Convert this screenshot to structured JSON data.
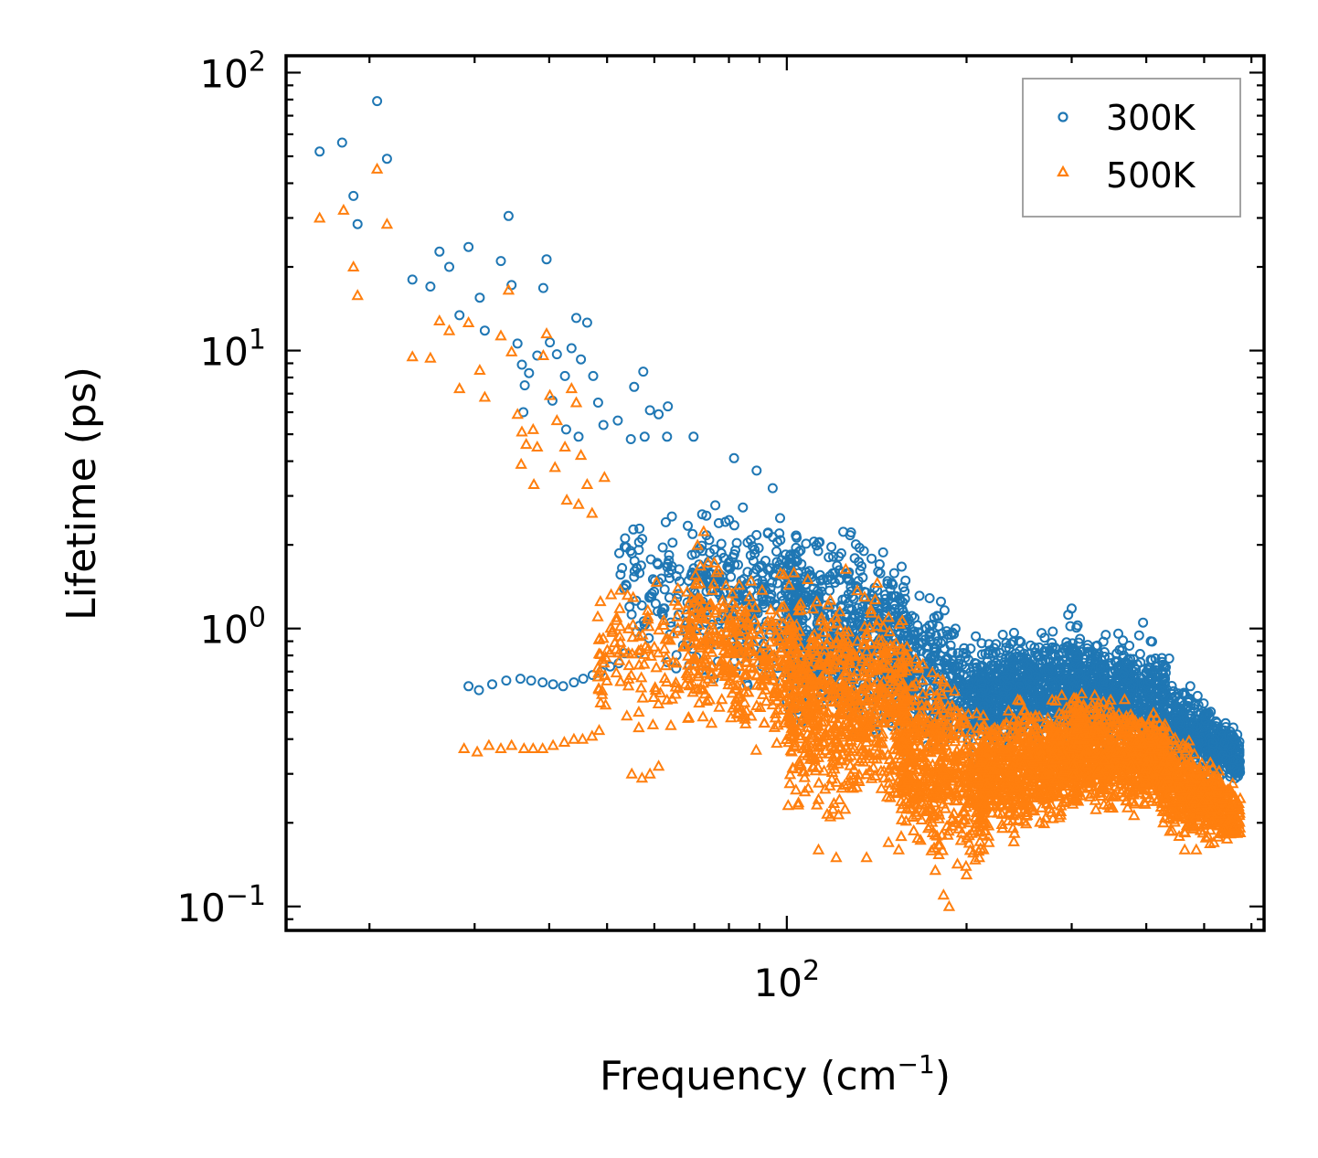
{
  "chart_data": {
    "type": "scatter",
    "title": "",
    "xlabel": "Frequency (cm",
    "xlabel_sup": "−1",
    "xlabel_end": ")",
    "ylabel": "Lifetime (ps)",
    "xscale": "log",
    "yscale": "log",
    "xlim": [
      14.5,
      630
    ],
    "ylim": [
      0.082,
      115
    ],
    "x_ticks": [
      {
        "value": 100,
        "base": "10",
        "exp": "2"
      }
    ],
    "y_ticks": [
      {
        "value": 0.1,
        "base": "10",
        "exp": "−1"
      },
      {
        "value": 1,
        "base": "10",
        "exp": "0"
      },
      {
        "value": 10,
        "base": "10",
        "exp": "1"
      },
      {
        "value": 100,
        "base": "10",
        "exp": "2"
      }
    ],
    "legend_position": "top-right",
    "colors": {
      "300K": "#1f77b4",
      "500K": "#ff7f0e"
    },
    "series": [
      {
        "name": "300K",
        "marker": "circle",
        "points": [
          [
            16.5,
            52
          ],
          [
            18,
            56
          ],
          [
            18.8,
            36
          ],
          [
            19.1,
            28.5
          ],
          [
            20.6,
            79
          ],
          [
            21.4,
            49
          ],
          [
            23.6,
            18
          ],
          [
            25.3,
            17
          ],
          [
            26.2,
            22.7
          ],
          [
            27.2,
            20
          ],
          [
            28.3,
            13.4
          ],
          [
            29.3,
            23.6
          ],
          [
            30.6,
            15.5
          ],
          [
            31.2,
            11.8
          ],
          [
            33.2,
            21
          ],
          [
            34.2,
            30.5
          ],
          [
            34.6,
            17.2
          ],
          [
            35.4,
            10.6
          ],
          [
            36,
            8.9
          ],
          [
            36.4,
            7.5
          ],
          [
            37,
            8.3
          ],
          [
            38.2,
            9.6
          ],
          [
            39.1,
            16.8
          ],
          [
            39.6,
            21.3
          ],
          [
            40.1,
            10.7
          ],
          [
            41.2,
            9.7
          ],
          [
            42.5,
            8.1
          ],
          [
            43.6,
            10.2
          ],
          [
            44.4,
            13.1
          ],
          [
            45.2,
            9.3
          ],
          [
            46.3,
            12.6
          ],
          [
            47.4,
            8.1
          ],
          [
            48.3,
            6.5
          ],
          [
            55.5,
            7.4
          ],
          [
            57.5,
            8.4
          ],
          [
            59,
            6.1
          ],
          [
            61,
            5.9
          ],
          [
            63.2,
            6.3
          ],
          [
            36.2,
            6
          ],
          [
            40.5,
            6.6
          ],
          [
            42.7,
            5.2
          ],
          [
            44.8,
            4.9
          ],
          [
            49.3,
            5.4
          ],
          [
            52.1,
            5.6
          ],
          [
            54.8,
            4.8
          ],
          [
            57.8,
            4.9
          ],
          [
            63,
            4.9
          ],
          [
            69.8,
            4.9
          ],
          [
            81.6,
            4.1
          ],
          [
            89,
            3.7
          ],
          [
            94.7,
            3.2
          ],
          [
            29.3,
            0.62
          ],
          [
            30.5,
            0.6
          ],
          [
            32.1,
            0.63
          ],
          [
            33.9,
            0.65
          ],
          [
            35.8,
            0.66
          ],
          [
            37.3,
            0.65
          ],
          [
            39,
            0.64
          ],
          [
            40.6,
            0.63
          ],
          [
            42.2,
            0.62
          ],
          [
            44,
            0.64
          ],
          [
            45.6,
            0.66
          ],
          [
            47.3,
            0.68
          ],
          [
            48.9,
            0.7
          ],
          [
            50.6,
            0.73
          ],
          [
            52.3,
            0.75
          ],
          [
            104,
            0.94
          ],
          [
            108,
            0.9
          ],
          [
            113,
            0.95
          ],
          [
            118,
            1.2
          ],
          [
            124,
            1.27
          ],
          [
            128.6,
            1.3
          ],
          [
            124.8,
            1.05
          ],
          [
            182,
            0.96
          ],
          [
            166,
            0.97
          ],
          [
            230,
            0.95
          ],
          [
            296,
            1.12
          ],
          [
            300,
            1.18
          ],
          [
            395,
            1.05
          ],
          [
            407,
            0.9
          ],
          [
            437,
            0.78
          ],
          [
            474,
            0.62
          ],
          [
            535,
            0.43
          ],
          [
            541,
            0.39
          ]
        ],
        "bands": [
          {
            "x": [
              52,
              70
            ],
            "y_low": [
              0.7,
              0.5
            ],
            "y_high": [
              2.8,
              3.3
            ],
            "density": 90
          },
          {
            "x": [
              68,
              105
            ],
            "y_low": [
              0.55,
              0.55
            ],
            "y_high": [
              3.6,
              2.9
            ],
            "density": 320
          },
          {
            "x": [
              100,
              160
            ],
            "y_low": [
              0.35,
              0.3
            ],
            "y_high": [
              2.8,
              2.3
            ],
            "density": 650
          },
          {
            "x": [
              155,
              215
            ],
            "y_low": [
              0.26,
              0.32
            ],
            "y_high": [
              1.9,
              1.0
            ],
            "density": 380
          },
          {
            "x": [
              210,
              310
            ],
            "y_low": [
              0.34,
              0.35
            ],
            "y_high": [
              0.98,
              1.15
            ],
            "density": 700
          },
          {
            "x": [
              300,
              430
            ],
            "y_low": [
              0.32,
              0.32
            ],
            "y_high": [
              1.12,
              0.98
            ],
            "density": 650
          },
          {
            "x": [
              425,
              575
            ],
            "y_low": [
              0.27,
              0.27
            ],
            "y_high": [
              0.8,
              0.42
            ],
            "density": 520
          }
        ]
      },
      {
        "name": "500K",
        "marker": "triangle",
        "points": [
          [
            16.5,
            30
          ],
          [
            18.1,
            32
          ],
          [
            18.8,
            20
          ],
          [
            19.1,
            15.8
          ],
          [
            20.6,
            45
          ],
          [
            21.4,
            28.5
          ],
          [
            23.6,
            9.5
          ],
          [
            25.3,
            9.4
          ],
          [
            26.2,
            12.8
          ],
          [
            27.2,
            11.8
          ],
          [
            28.3,
            7.3
          ],
          [
            29.3,
            12.6
          ],
          [
            30.6,
            8.5
          ],
          [
            31.2,
            6.8
          ],
          [
            33.2,
            11.3
          ],
          [
            34.2,
            16.5
          ],
          [
            34.6,
            9.9
          ],
          [
            35.4,
            5.9
          ],
          [
            36,
            5.1
          ],
          [
            36.6,
            4.6
          ],
          [
            37.6,
            5.2
          ],
          [
            38.2,
            4.5
          ],
          [
            39.1,
            9.6
          ],
          [
            39.6,
            11.5
          ],
          [
            40.1,
            6.9
          ],
          [
            41.2,
            5.6
          ],
          [
            42.5,
            4.5
          ],
          [
            43.6,
            7.3
          ],
          [
            44.4,
            6.5
          ],
          [
            45.2,
            4.2
          ],
          [
            46.3,
            3.3
          ],
          [
            49.5,
            3.5
          ],
          [
            40.9,
            3.8
          ],
          [
            42.8,
            2.9
          ],
          [
            44.8,
            2.8
          ],
          [
            47.2,
            2.6
          ],
          [
            35.9,
            3.9
          ],
          [
            37.7,
            3.3
          ],
          [
            28.8,
            0.37
          ],
          [
            30.3,
            0.36
          ],
          [
            31.7,
            0.38
          ],
          [
            33.2,
            0.37
          ],
          [
            34.6,
            0.38
          ],
          [
            36.3,
            0.37
          ],
          [
            37.6,
            0.37
          ],
          [
            39,
            0.37
          ],
          [
            40.6,
            0.38
          ],
          [
            42.4,
            0.39
          ],
          [
            44,
            0.4
          ],
          [
            45.5,
            0.4
          ],
          [
            47.2,
            0.41
          ],
          [
            48.5,
            0.43
          ],
          [
            55,
            0.3
          ],
          [
            57.2,
            0.29
          ],
          [
            59,
            0.3
          ],
          [
            61,
            0.32
          ],
          [
            56.5,
            0.44
          ],
          [
            113,
            0.16
          ],
          [
            121,
            0.15
          ],
          [
            136,
            0.15
          ],
          [
            148,
            0.17
          ],
          [
            154,
            0.16
          ],
          [
            183,
            0.11
          ],
          [
            187,
            0.1
          ],
          [
            200,
            0.13
          ],
          [
            210,
            0.15
          ],
          [
            218,
            0.17
          ],
          [
            464,
            0.16
          ],
          [
            485,
            0.16
          ],
          [
            519,
            0.17
          ],
          [
            541,
            0.19
          ]
        ],
        "bands": [
          {
            "x": [
              48,
              70
            ],
            "y_low": [
              0.4,
              0.3
            ],
            "y_high": [
              1.6,
              2.1
            ],
            "density": 120
          },
          {
            "x": [
              68,
              105
            ],
            "y_low": [
              0.36,
              0.28
            ],
            "y_high": [
              2.4,
              1.8
            ],
            "density": 380
          },
          {
            "x": [
              100,
              160
            ],
            "y_low": [
              0.17,
              0.17
            ],
            "y_high": [
              1.8,
              1.6
            ],
            "density": 750
          },
          {
            "x": [
              155,
              215
            ],
            "y_low": [
              0.13,
              0.11
            ],
            "y_high": [
              1.0,
              0.65
            ],
            "density": 560
          },
          {
            "x": [
              210,
              310
            ],
            "y_low": [
              0.15,
              0.19
            ],
            "y_high": [
              0.55,
              0.66
            ],
            "density": 800
          },
          {
            "x": [
              300,
              430
            ],
            "y_low": [
              0.2,
              0.2
            ],
            "y_high": [
              0.68,
              0.56
            ],
            "density": 750
          },
          {
            "x": [
              425,
              575
            ],
            "y_low": [
              0.16,
              0.16
            ],
            "y_high": [
              0.5,
              0.27
            ],
            "density": 560
          }
        ]
      }
    ]
  }
}
